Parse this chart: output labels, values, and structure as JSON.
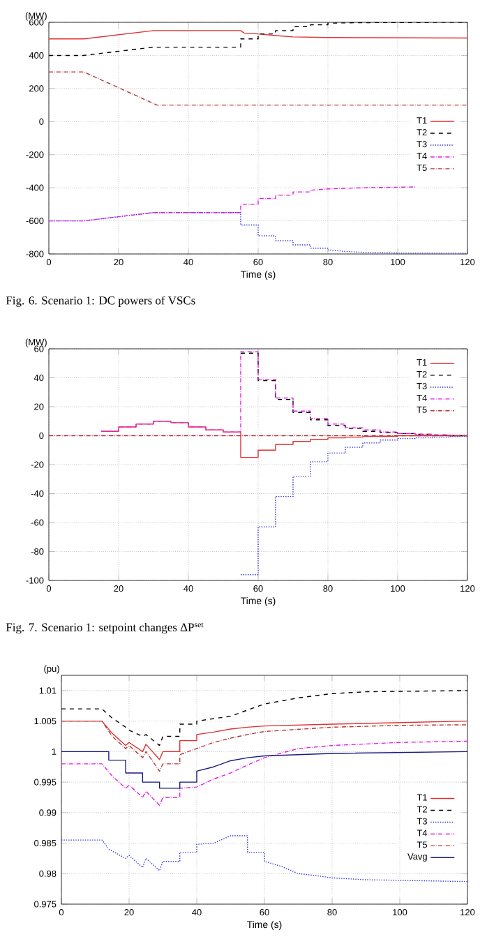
{
  "chart_data": [
    {
      "type": "line",
      "xlabel": "Time (s)",
      "ylabel": "(MW)",
      "xlim": [
        0,
        120
      ],
      "ylim": [
        -800,
        600
      ],
      "xticks": [
        0,
        20,
        40,
        60,
        80,
        100,
        120
      ],
      "yticks": [
        -800,
        -600,
        -400,
        -200,
        0,
        200,
        400,
        600
      ],
      "grid": true,
      "legend": "right",
      "annotations": [
        "Fig. 6. Scenario 1: DC powers of VSCs"
      ],
      "series": [
        {
          "name": "T1",
          "color": "#e03030",
          "line_style": "solid",
          "x": [
            0,
            10,
            20,
            30,
            55,
            56,
            60,
            65,
            70,
            80,
            120
          ],
          "values": [
            500,
            500,
            525,
            550,
            550,
            535,
            530,
            520,
            512,
            508,
            505
          ]
        },
        {
          "name": "T2",
          "color": "#000000",
          "line_style": "dashed",
          "x": [
            0,
            10,
            20,
            30,
            55,
            55,
            60,
            60,
            65,
            65,
            70,
            70,
            75,
            75,
            80,
            80,
            90,
            120
          ],
          "values": [
            400,
            400,
            425,
            450,
            450,
            500,
            500,
            530,
            530,
            550,
            550,
            575,
            575,
            585,
            585,
            595,
            598,
            600
          ]
        },
        {
          "name": "T3",
          "color": "#3030e0",
          "line_style": "dotted",
          "x": [
            0,
            10,
            20,
            30,
            55,
            55,
            60,
            60,
            65,
            65,
            70,
            70,
            75,
            75,
            80,
            80,
            85,
            90,
            100,
            120
          ],
          "values": [
            -600,
            -600,
            -575,
            -550,
            -550,
            -625,
            -625,
            -690,
            -690,
            -720,
            -720,
            -745,
            -745,
            -765,
            -765,
            -775,
            -785,
            -790,
            -795,
            -795
          ]
        },
        {
          "name": "T4",
          "color": "#e020e0",
          "line_style": "dashdot",
          "x": [
            0,
            10,
            20,
            30,
            55,
            55,
            60,
            60,
            65,
            65,
            70,
            70,
            75,
            75,
            80,
            90,
            105
          ],
          "values": [
            -600,
            -600,
            -575,
            -550,
            -550,
            -500,
            -500,
            -465,
            -465,
            -445,
            -445,
            -425,
            -425,
            -415,
            -407,
            -400,
            -395
          ]
        },
        {
          "name": "T5",
          "color": "#b03838",
          "line_style": "dashdot",
          "x": [
            0,
            10,
            31,
            120
          ],
          "values": [
            300,
            300,
            100,
            100
          ]
        }
      ]
    },
    {
      "type": "step",
      "xlabel": "Time (s)",
      "ylabel": "(MW)",
      "xlim": [
        0,
        120
      ],
      "ylim": [
        -100,
        60
      ],
      "xticks": [
        0,
        20,
        40,
        60,
        80,
        100,
        120
      ],
      "yticks": [
        -100,
        -80,
        -60,
        -40,
        -20,
        0,
        20,
        40,
        60
      ],
      "grid": true,
      "legend": "top right",
      "annotations": [
        "Fig. 7. Scenario 1: setpoint changes ΔP$^{set}$"
      ],
      "x": [
        0,
        5,
        10,
        15,
        20,
        25,
        30,
        35,
        40,
        45,
        50,
        55,
        60,
        65,
        70,
        75,
        80,
        85,
        90,
        95,
        100,
        105,
        110,
        115,
        120
      ],
      "series": [
        {
          "name": "T1",
          "color": "#e03030",
          "line_style": "solid",
          "values": [
            null,
            null,
            null,
            3,
            6,
            8,
            10,
            9,
            6,
            4,
            2.5,
            -15,
            -10,
            -6,
            -4,
            -2.5,
            -1.5,
            -1,
            -0.5,
            -0.5,
            0,
            0,
            0,
            0,
            0
          ]
        },
        {
          "name": "T2",
          "color": "#000000",
          "line_style": "dashed",
          "values": [
            null,
            null,
            null,
            null,
            null,
            null,
            null,
            null,
            null,
            null,
            null,
            57,
            38,
            25,
            16,
            11,
            7,
            5,
            3,
            2,
            1.5,
            1,
            0.5,
            0,
            0
          ]
        },
        {
          "name": "T3",
          "color": "#3030e0",
          "line_style": "dotted",
          "values": [
            null,
            null,
            null,
            null,
            null,
            null,
            null,
            null,
            null,
            null,
            null,
            -96,
            -63,
            -42,
            -28,
            -18,
            -12,
            -8,
            -5,
            -3,
            -2,
            -1.5,
            -1,
            -0.5,
            0
          ]
        },
        {
          "name": "T4",
          "color": "#e020e0",
          "line_style": "dashdot",
          "values": [
            null,
            null,
            null,
            3,
            6,
            8,
            10,
            9,
            6,
            4,
            2.5,
            58,
            39,
            26,
            17,
            12,
            8,
            5.5,
            4,
            2.5,
            1.5,
            1,
            0.5,
            0,
            0
          ]
        },
        {
          "name": "T5",
          "color": "#b03838",
          "line_style": "dashdot",
          "values": [
            0,
            0,
            0,
            0,
            0,
            0,
            0,
            0,
            0,
            0,
            0,
            0,
            0,
            0,
            0,
            0,
            0,
            0,
            0,
            0,
            0,
            0,
            0,
            0,
            0
          ]
        }
      ]
    },
    {
      "type": "line",
      "xlabel": "Time (s)",
      "ylabel": "(pu)",
      "xlim": [
        0,
        120
      ],
      "ylim": [
        0.975,
        1.0125
      ],
      "xticks": [
        0,
        20,
        40,
        60,
        80,
        100,
        120
      ],
      "yticks": [
        0.975,
        0.98,
        0.985,
        0.99,
        0.995,
        1,
        1.005,
        1.01
      ],
      "grid": true,
      "legend": "bottom right",
      "series": [
        {
          "name": "T1",
          "color": "#e03030",
          "line_style": "solid",
          "x": [
            0,
            12,
            15,
            19,
            20,
            24,
            25,
            29,
            30,
            35,
            35,
            40,
            40,
            45,
            50,
            55,
            60,
            80,
            120
          ],
          "values": [
            1.005,
            1.005,
            1.003,
            1.001,
            1.0015,
            1.0,
            1.0012,
            0.9987,
            1.0,
            1.0,
            1.0018,
            1.0018,
            1.0028,
            1.0032,
            1.0037,
            1.004,
            1.0042,
            1.0045,
            1.005
          ]
        },
        {
          "name": "T2",
          "color": "#000000",
          "line_style": "dashed",
          "x": [
            0,
            12,
            15,
            19,
            20,
            24,
            25,
            29,
            30,
            35,
            35,
            40,
            40,
            50,
            55,
            60,
            70,
            80,
            90,
            120
          ],
          "values": [
            1.007,
            1.007,
            1.0055,
            1.004,
            1.0035,
            1.0025,
            1.0028,
            1.001,
            1.0025,
            1.0025,
            1.0045,
            1.0045,
            1.005,
            1.0058,
            1.0068,
            1.0078,
            1.0088,
            1.0095,
            1.0098,
            1.01
          ]
        },
        {
          "name": "T3",
          "color": "#3030e0",
          "line_style": "dotted",
          "x": [
            0,
            12,
            14,
            19,
            20,
            24,
            25,
            29,
            30,
            35,
            35,
            40,
            40,
            45,
            50,
            55,
            55,
            60,
            60,
            65,
            70,
            75,
            80,
            90,
            120
          ],
          "values": [
            0.9855,
            0.9855,
            0.984,
            0.9825,
            0.983,
            0.981,
            0.9825,
            0.9805,
            0.982,
            0.982,
            0.9835,
            0.9835,
            0.9848,
            0.985,
            0.9862,
            0.9862,
            0.9835,
            0.9835,
            0.982,
            0.9812,
            0.98,
            0.9797,
            0.9793,
            0.979,
            0.9787
          ]
        },
        {
          "name": "T4",
          "color": "#e020e0",
          "line_style": "dashdot",
          "x": [
            0,
            12,
            15,
            19,
            20,
            24,
            25,
            29,
            30,
            35,
            35,
            40,
            45,
            50,
            55,
            60,
            70,
            80,
            100,
            120
          ],
          "values": [
            0.998,
            0.998,
            0.996,
            0.994,
            0.9945,
            0.9925,
            0.9935,
            0.9912,
            0.9925,
            0.9925,
            0.994,
            0.9942,
            0.9955,
            0.9965,
            0.9978,
            0.999,
            1.0005,
            1.001,
            1.0015,
            1.0017
          ]
        },
        {
          "name": "T5",
          "color": "#b03838",
          "line_style": "dashdot",
          "x": [
            0,
            12,
            15,
            19,
            20,
            24,
            25,
            29,
            30,
            35,
            35,
            40,
            45,
            50,
            55,
            60,
            80,
            100,
            120
          ],
          "values": [
            1.005,
            1.005,
            1.0025,
            1.0005,
            1.001,
            0.999,
            1.0,
            0.9968,
            0.998,
            0.998,
            0.9995,
            1.0005,
            1.0015,
            1.0022,
            1.0028,
            1.0033,
            1.004,
            1.0043,
            1.0044
          ]
        },
        {
          "name": "Vavg",
          "color": "#1a1a80",
          "line_style": "solid",
          "x": [
            0,
            14,
            14,
            19,
            19,
            24,
            24,
            29,
            29,
            35,
            35,
            40,
            40,
            45,
            50,
            55,
            60,
            80,
            120
          ],
          "values": [
            1.0,
            1.0,
            0.9986,
            0.9986,
            0.9965,
            0.9965,
            0.995,
            0.995,
            0.994,
            0.994,
            0.995,
            0.995,
            0.9968,
            0.9975,
            0.9985,
            0.999,
            0.9993,
            0.9997,
            1.0
          ]
        }
      ]
    }
  ]
}
